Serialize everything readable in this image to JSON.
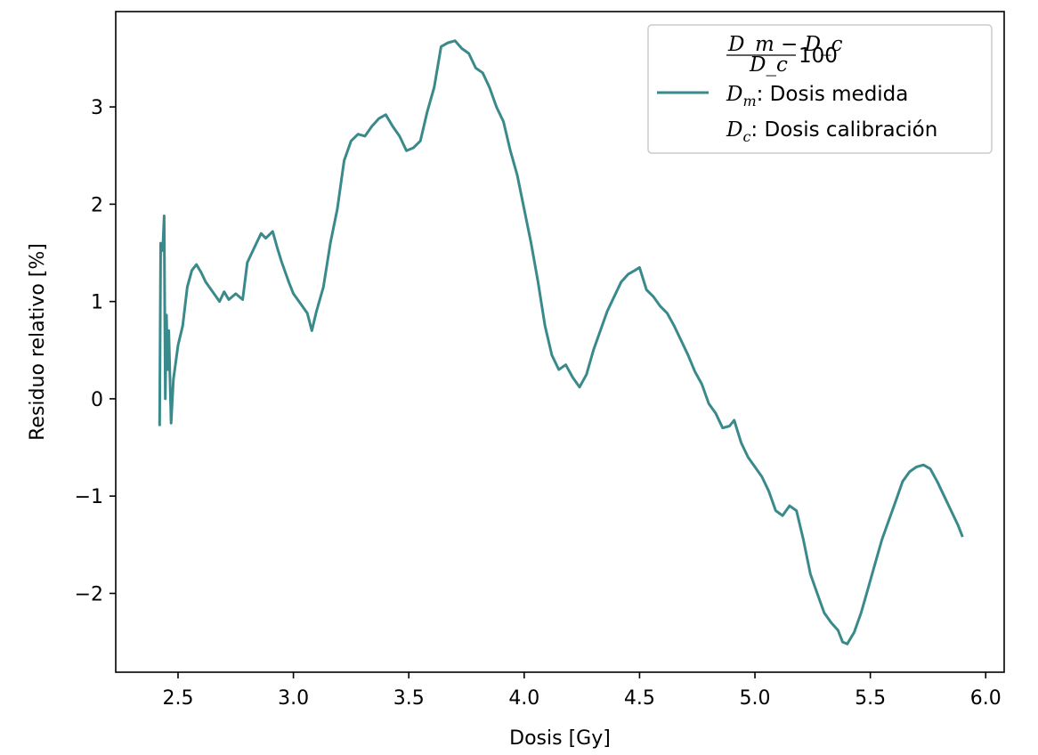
{
  "chart_data": {
    "type": "line",
    "title": "",
    "xlabel": "Dosis [Gy]",
    "ylabel": "Residuo relativo [%]",
    "xlim": [
      2.23,
      6.08
    ],
    "ylim": [
      -2.81,
      3.98
    ],
    "x_ticks": [
      2.5,
      3.0,
      3.5,
      4.0,
      4.5,
      5.0,
      5.5,
      6.0
    ],
    "x_tick_labels": [
      "2.5",
      "3.0",
      "3.5",
      "4.0",
      "4.5",
      "5.0",
      "5.5",
      "6.0"
    ],
    "y_ticks": [
      -2,
      -1,
      0,
      1,
      2,
      3
    ],
    "y_tick_labels": [
      "−2",
      "−1",
      "0",
      "1",
      "2",
      "3"
    ],
    "grid": false,
    "legend": {
      "placement": "top-right",
      "formula_numerator": "D_m − D_c",
      "formula_denominator": "D_c",
      "formula_factor": "100",
      "line1_symbol": "D",
      "line1_sub": "m",
      "line1_text": ": Dosis medida",
      "line2_symbol": "D",
      "line2_sub": "c",
      "line2_text": ": Dosis calibración"
    },
    "series": [
      {
        "color": "#3a8a8c",
        "points": [
          [
            2.42,
            -0.28
          ],
          [
            2.425,
            1.6
          ],
          [
            2.43,
            1.52
          ],
          [
            2.435,
            1.6
          ],
          [
            2.44,
            1.88
          ],
          [
            2.445,
            0.0
          ],
          [
            2.45,
            0.86
          ],
          [
            2.455,
            0.3
          ],
          [
            2.46,
            0.7
          ],
          [
            2.47,
            -0.25
          ],
          [
            2.48,
            0.2
          ],
          [
            2.5,
            0.55
          ],
          [
            2.52,
            0.75
          ],
          [
            2.54,
            1.15
          ],
          [
            2.56,
            1.32
          ],
          [
            2.58,
            1.38
          ],
          [
            2.6,
            1.3
          ],
          [
            2.62,
            1.2
          ],
          [
            2.65,
            1.1
          ],
          [
            2.68,
            1.0
          ],
          [
            2.7,
            1.1
          ],
          [
            2.72,
            1.02
          ],
          [
            2.75,
            1.08
          ],
          [
            2.78,
            1.02
          ],
          [
            2.8,
            1.4
          ],
          [
            2.83,
            1.55
          ],
          [
            2.86,
            1.7
          ],
          [
            2.88,
            1.65
          ],
          [
            2.91,
            1.72
          ],
          [
            2.93,
            1.55
          ],
          [
            2.95,
            1.4
          ],
          [
            2.98,
            1.2
          ],
          [
            3.0,
            1.08
          ],
          [
            3.03,
            0.98
          ],
          [
            3.06,
            0.88
          ],
          [
            3.08,
            0.7
          ],
          [
            3.1,
            0.9
          ],
          [
            3.13,
            1.15
          ],
          [
            3.16,
            1.6
          ],
          [
            3.19,
            1.95
          ],
          [
            3.22,
            2.45
          ],
          [
            3.25,
            2.65
          ],
          [
            3.28,
            2.72
          ],
          [
            3.31,
            2.7
          ],
          [
            3.34,
            2.8
          ],
          [
            3.37,
            2.88
          ],
          [
            3.4,
            2.92
          ],
          [
            3.43,
            2.8
          ],
          [
            3.46,
            2.7
          ],
          [
            3.49,
            2.55
          ],
          [
            3.52,
            2.58
          ],
          [
            3.55,
            2.65
          ],
          [
            3.58,
            2.95
          ],
          [
            3.61,
            3.2
          ],
          [
            3.64,
            3.62
          ],
          [
            3.67,
            3.66
          ],
          [
            3.7,
            3.68
          ],
          [
            3.73,
            3.6
          ],
          [
            3.76,
            3.55
          ],
          [
            3.79,
            3.4
          ],
          [
            3.82,
            3.35
          ],
          [
            3.85,
            3.2
          ],
          [
            3.88,
            3.0
          ],
          [
            3.91,
            2.85
          ],
          [
            3.94,
            2.55
          ],
          [
            3.97,
            2.3
          ],
          [
            4.0,
            1.95
          ],
          [
            4.03,
            1.6
          ],
          [
            4.06,
            1.2
          ],
          [
            4.09,
            0.75
          ],
          [
            4.12,
            0.45
          ],
          [
            4.15,
            0.3
          ],
          [
            4.18,
            0.35
          ],
          [
            4.21,
            0.22
          ],
          [
            4.24,
            0.12
          ],
          [
            4.27,
            0.25
          ],
          [
            4.3,
            0.5
          ],
          [
            4.33,
            0.7
          ],
          [
            4.36,
            0.9
          ],
          [
            4.39,
            1.05
          ],
          [
            4.42,
            1.2
          ],
          [
            4.45,
            1.28
          ],
          [
            4.48,
            1.32
          ],
          [
            4.5,
            1.35
          ],
          [
            4.53,
            1.12
          ],
          [
            4.56,
            1.05
          ],
          [
            4.59,
            0.95
          ],
          [
            4.62,
            0.88
          ],
          [
            4.65,
            0.75
          ],
          [
            4.68,
            0.6
          ],
          [
            4.71,
            0.45
          ],
          [
            4.74,
            0.28
          ],
          [
            4.77,
            0.15
          ],
          [
            4.8,
            -0.05
          ],
          [
            4.83,
            -0.15
          ],
          [
            4.86,
            -0.3
          ],
          [
            4.89,
            -0.28
          ],
          [
            4.91,
            -0.22
          ],
          [
            4.94,
            -0.45
          ],
          [
            4.97,
            -0.6
          ],
          [
            5.0,
            -0.7
          ],
          [
            5.03,
            -0.8
          ],
          [
            5.06,
            -0.95
          ],
          [
            5.09,
            -1.15
          ],
          [
            5.12,
            -1.2
          ],
          [
            5.15,
            -1.1
          ],
          [
            5.18,
            -1.15
          ],
          [
            5.21,
            -1.45
          ],
          [
            5.24,
            -1.8
          ],
          [
            5.27,
            -2.0
          ],
          [
            5.3,
            -2.2
          ],
          [
            5.33,
            -2.3
          ],
          [
            5.36,
            -2.38
          ],
          [
            5.38,
            -2.5
          ],
          [
            5.4,
            -2.52
          ],
          [
            5.43,
            -2.4
          ],
          [
            5.46,
            -2.2
          ],
          [
            5.49,
            -1.95
          ],
          [
            5.52,
            -1.7
          ],
          [
            5.55,
            -1.45
          ],
          [
            5.58,
            -1.25
          ],
          [
            5.61,
            -1.05
          ],
          [
            5.64,
            -0.85
          ],
          [
            5.67,
            -0.75
          ],
          [
            5.7,
            -0.7
          ],
          [
            5.73,
            -0.68
          ],
          [
            5.76,
            -0.72
          ],
          [
            5.79,
            -0.85
          ],
          [
            5.82,
            -1.0
          ],
          [
            5.85,
            -1.15
          ],
          [
            5.88,
            -1.3
          ],
          [
            5.9,
            -1.42
          ]
        ]
      }
    ]
  }
}
